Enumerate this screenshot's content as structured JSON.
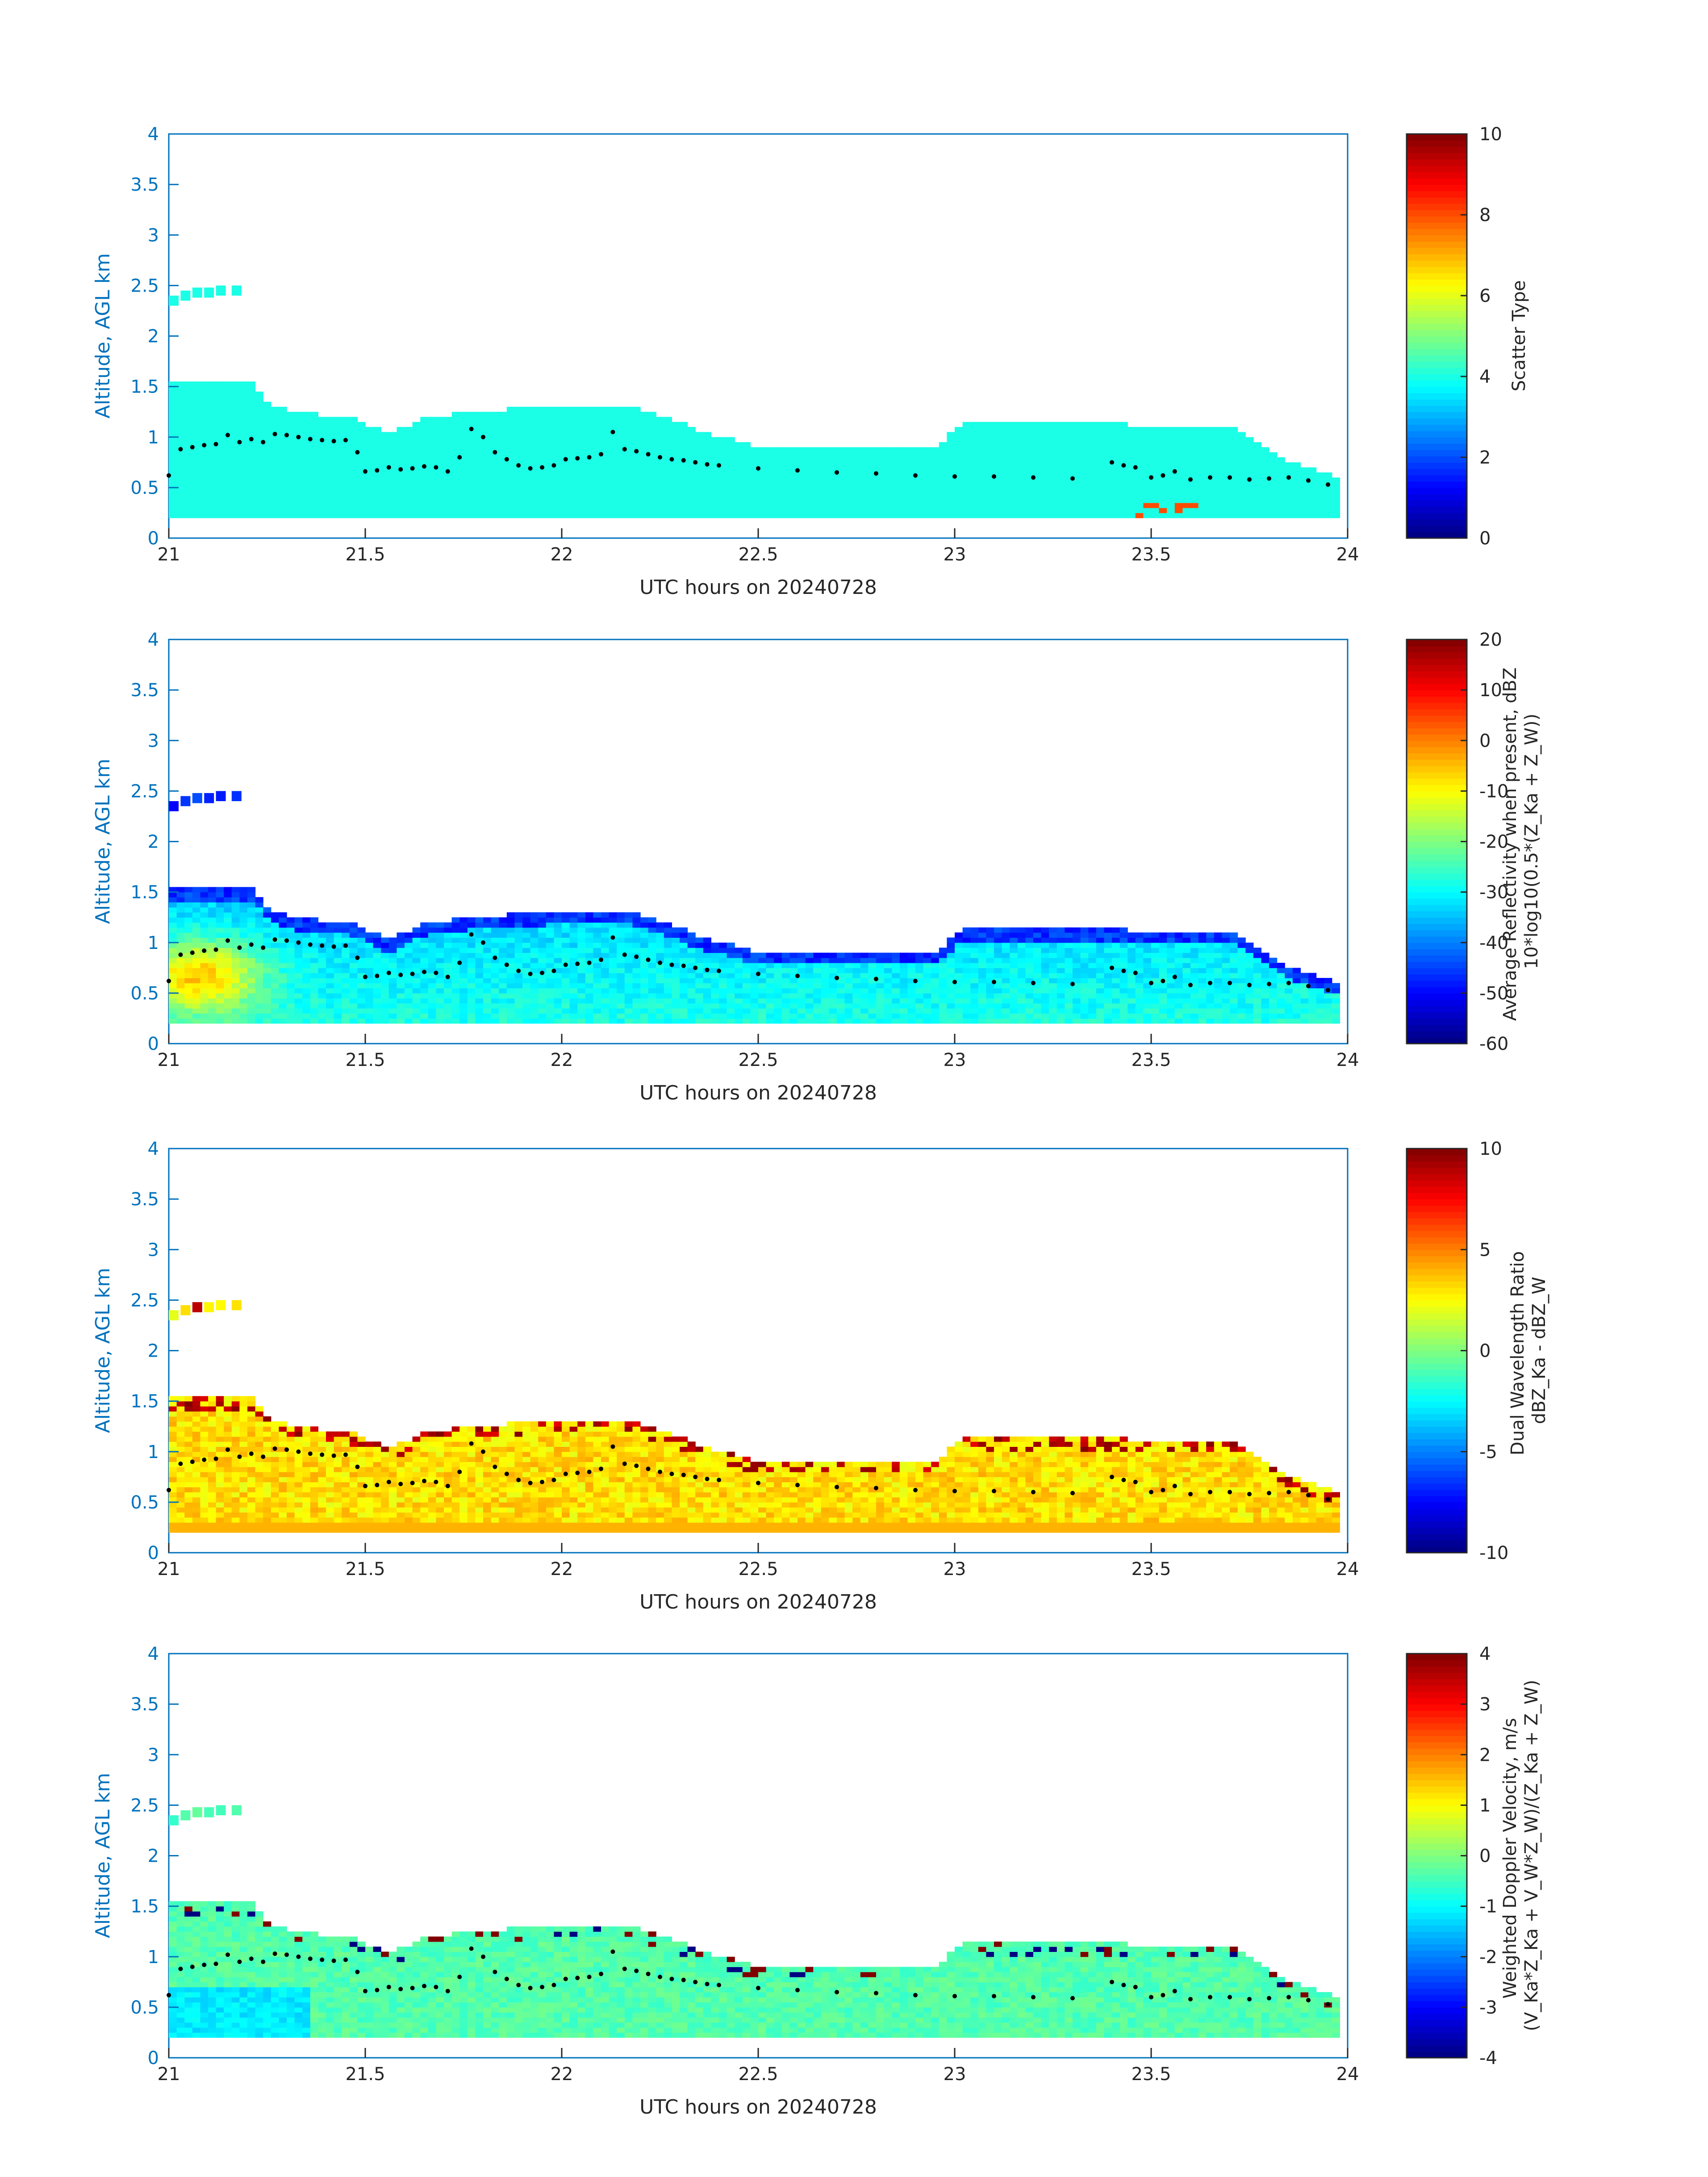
{
  "chart_data": [
    {
      "type": "heatmap",
      "panel": 1,
      "xlabel": "UTC hours on 20240728",
      "ylabel": "Altitude, AGL km",
      "xlim": [
        21,
        24
      ],
      "ylim": [
        0,
        4
      ],
      "xticks": [
        "21",
        "21.5",
        "22",
        "22.5",
        "23",
        "23.5",
        "24"
      ],
      "yticks": [
        "0",
        "0.5",
        "1",
        "1.5",
        "2",
        "2.5",
        "3",
        "3.5",
        "4"
      ],
      "colorbar": {
        "label_lines": [
          "Scatter Type"
        ],
        "range": [
          0,
          10
        ],
        "ticks": [
          "0",
          "2",
          "4",
          "6",
          "8",
          "10"
        ]
      },
      "field": "scatter",
      "description": "Cloud region mostly scatter type ~4 (cyan) between 0.2 and ~1.5 km, isolated cells near 2.4 km at 21.0-21.2 h"
    },
    {
      "type": "heatmap",
      "panel": 2,
      "xlabel": "UTC hours on 20240728",
      "ylabel": "Altitude, AGL km",
      "xlim": [
        21,
        24
      ],
      "ylim": [
        0,
        4
      ],
      "xticks": [
        "21",
        "21.5",
        "22",
        "22.5",
        "23",
        "23.5",
        "24"
      ],
      "yticks": [
        "0",
        "0.5",
        "1",
        "1.5",
        "2",
        "2.5",
        "3",
        "3.5",
        "4"
      ],
      "colorbar": {
        "label_lines": [
          "Average Reflectivity when present, dBZ",
          "10*log10(0.5*(Z_Ka + Z_W))"
        ],
        "range": [
          -60,
          20
        ],
        "ticks": [
          "-60",
          "-50",
          "-40",
          "-30",
          "-20",
          "-10",
          "0",
          "10",
          "20"
        ]
      },
      "field": "reflectivity",
      "description": "Reflectivity -60 to 0 dBZ, strongest (~0 dBZ orange) near 21.0-21.2 h below 1 km, fringe -50 dBZ (blue) at cloud edges"
    },
    {
      "type": "heatmap",
      "panel": 3,
      "xlabel": "UTC hours on 20240728",
      "ylabel": "Altitude, AGL km",
      "xlim": [
        21,
        24
      ],
      "ylim": [
        0,
        4
      ],
      "xticks": [
        "21",
        "21.5",
        "22",
        "22.5",
        "23",
        "23.5",
        "24"
      ],
      "yticks": [
        "0",
        "0.5",
        "1",
        "1.5",
        "2",
        "2.5",
        "3",
        "3.5",
        "4"
      ],
      "colorbar": {
        "label_lines": [
          "Dual Wavelength Ratio",
          "dBZ_Ka - dBZ_W"
        ],
        "range": [
          -10,
          10
        ],
        "ticks": [
          "-10",
          "-5",
          "0",
          "5",
          "10"
        ]
      },
      "field": "dwr",
      "description": "DWR mostly 1-3 dB (yellow), higher near cloud top and at 0.3 km layer"
    },
    {
      "type": "heatmap",
      "panel": 4,
      "xlabel": "UTC hours on 20240728",
      "ylabel": "Altitude, AGL km",
      "xlim": [
        21,
        24
      ],
      "ylim": [
        0,
        4
      ],
      "xticks": [
        "21",
        "21.5",
        "22",
        "22.5",
        "23",
        "23.5",
        "24"
      ],
      "yticks": [
        "0",
        "0.5",
        "1",
        "1.5",
        "2",
        "2.5",
        "3",
        "3.5",
        "4"
      ],
      "colorbar": {
        "label_lines": [
          "Weighted Doppler Velocity, m/s",
          "(V_Ka*Z_Ka + V_W*Z_W)/(Z_Ka + Z_W)"
        ],
        "range": [
          -4,
          4
        ],
        "ticks": [
          "-4",
          "-3",
          "-2",
          "-1",
          "0",
          "1",
          "2",
          "3",
          "4"
        ]
      },
      "field": "doppler",
      "description": "Doppler velocity mostly -1 to 0 m/s, downward (~-1.5) near cloud base at 21.0-21.3 h"
    }
  ],
  "cloud_top_dots": {
    "x": [
      21.0,
      21.03,
      21.06,
      21.09,
      21.12,
      21.15,
      21.18,
      21.21,
      21.24,
      21.27,
      21.3,
      21.33,
      21.36,
      21.39,
      21.42,
      21.45,
      21.48,
      21.5,
      21.53,
      21.56,
      21.59,
      21.62,
      21.65,
      21.68,
      21.71,
      21.74,
      21.77,
      21.8,
      21.83,
      21.86,
      21.89,
      21.92,
      21.95,
      21.98,
      22.01,
      22.04,
      22.07,
      22.1,
      22.13,
      22.16,
      22.19,
      22.22,
      22.25,
      22.28,
      22.31,
      22.34,
      22.37,
      22.4,
      22.5,
      22.6,
      22.7,
      22.8,
      22.9,
      23.0,
      23.1,
      23.2,
      23.3,
      23.4,
      23.43,
      23.46,
      23.5,
      23.53,
      23.56,
      23.6,
      23.65,
      23.7,
      23.75,
      23.8,
      23.85,
      23.9,
      23.95
    ],
    "y": [
      0.62,
      0.88,
      0.9,
      0.92,
      0.93,
      1.02,
      0.95,
      0.98,
      0.95,
      1.03,
      1.02,
      1.0,
      0.98,
      0.97,
      0.96,
      0.97,
      0.85,
      0.66,
      0.67,
      0.7,
      0.68,
      0.69,
      0.71,
      0.7,
      0.66,
      0.8,
      1.08,
      1.0,
      0.85,
      0.78,
      0.72,
      0.69,
      0.7,
      0.72,
      0.78,
      0.79,
      0.8,
      0.83,
      1.05,
      0.88,
      0.86,
      0.83,
      0.8,
      0.78,
      0.77,
      0.75,
      0.73,
      0.72,
      0.69,
      0.67,
      0.65,
      0.64,
      0.62,
      0.61,
      0.61,
      0.6,
      0.59,
      0.75,
      0.72,
      0.7,
      0.6,
      0.62,
      0.66,
      0.58,
      0.6,
      0.6,
      0.58,
      0.59,
      0.6,
      0.57,
      0.53
    ]
  }
}
